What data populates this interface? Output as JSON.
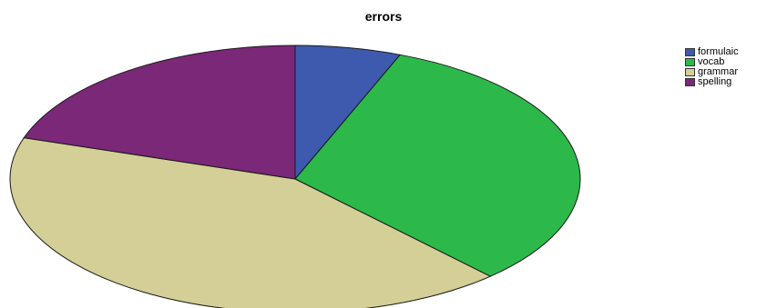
{
  "chart_data": {
    "type": "pie",
    "title": "errors",
    "legend_position": "top-right",
    "slices": [
      {
        "label": "formulaic",
        "value": 6,
        "color": "#3d5aaf"
      },
      {
        "label": "vocab",
        "value": 32,
        "color": "#2db84a"
      },
      {
        "label": "grammar",
        "value": 42,
        "color": "#d4cf96"
      },
      {
        "label": "spelling",
        "value": 20,
        "color": "#7b2878"
      }
    ]
  }
}
